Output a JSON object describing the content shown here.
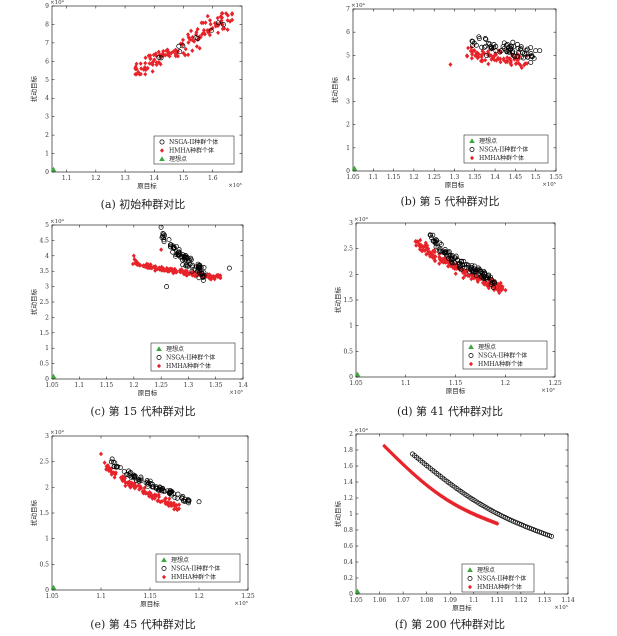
{
  "colors": {
    "nsga": "#000000",
    "hmha": "#e8232a",
    "ideal": "#3ca83c",
    "axis": "#000000"
  },
  "chart_data": [
    {
      "type": "scatter",
      "caption": "(a) 初始种群对比",
      "xlabel": "原目标",
      "ylabel": "扰动目标",
      "x_exponent": "×10⁵",
      "y_exponent": "×10⁴",
      "xlim": [
        1.05,
        1.7
      ],
      "ylim": [
        0,
        9
      ],
      "xticks": [
        "1.1",
        "1.2",
        "1.3",
        "1.4",
        "1.5",
        "1.6"
      ],
      "xtick_vals": [
        1.1,
        1.2,
        1.3,
        1.4,
        1.5,
        1.6
      ],
      "yticks": [
        "0",
        "1",
        "2",
        "3",
        "4",
        "5",
        "6",
        "7",
        "8",
        "9"
      ],
      "ytick_vals": [
        0,
        1,
        2,
        3,
        4,
        5,
        6,
        7,
        8,
        9
      ],
      "legend_position": "bottom-right",
      "legend": [
        "NSGA-II种群个体",
        "HMHA种群个体",
        "理想点"
      ],
      "legend_order": [
        "nsga",
        "hmha",
        "ideal"
      ],
      "ideal_point": [
        1.05,
        0
      ],
      "clouds": [
        {
          "series": "hmha",
          "x": [
            1.33,
            1.68
          ],
          "y": [
            5.3,
            8.6
          ],
          "n": 130,
          "spread": 0.9,
          "slope": 1.0
        },
        {
          "series": "nsga",
          "x": [
            1.4,
            1.65
          ],
          "y": [
            6.0,
            8.2
          ],
          "n": 10,
          "spread": 0.6,
          "slope": 1.0
        }
      ]
    },
    {
      "type": "scatter",
      "caption": "(b) 第 5 代种群对比",
      "xlabel": "原目标",
      "ylabel": "扰动目标",
      "x_exponent": "×10⁵",
      "y_exponent": "×10⁴",
      "xlim": [
        1.05,
        1.55
      ],
      "ylim": [
        0,
        7
      ],
      "xticks": [
        "1.05",
        "1.1",
        "1.15",
        "1.2",
        "1.25",
        "1.3",
        "1.35",
        "1.4",
        "1.45",
        "1.5",
        "1.55"
      ],
      "xtick_vals": [
        1.05,
        1.1,
        1.15,
        1.2,
        1.25,
        1.3,
        1.35,
        1.4,
        1.45,
        1.5,
        1.55
      ],
      "yticks": [
        "0",
        "1",
        "2",
        "3",
        "4",
        "5",
        "6",
        "7"
      ],
      "ytick_vals": [
        0,
        1,
        2,
        3,
        4,
        5,
        6,
        7
      ],
      "legend_position": "bottom-right",
      "legend": [
        "理想点",
        "NSGA-II种群个体",
        "HMHA种群个体"
      ],
      "legend_order": [
        "ideal",
        "nsga",
        "hmha"
      ],
      "ideal_point": [
        1.05,
        0
      ],
      "clouds": [
        {
          "series": "nsga",
          "x": [
            1.34,
            1.5
          ],
          "y": [
            4.4,
            6.2
          ],
          "n": 70,
          "spread": 1.0,
          "slope": -0.3
        },
        {
          "series": "hmha",
          "x": [
            1.33,
            1.48
          ],
          "y": [
            4.2,
            5.6
          ],
          "n": 80,
          "spread": 1.0,
          "slope": -0.3
        }
      ],
      "extra_points": [
        {
          "series": "hmha",
          "x": 1.29,
          "y": 4.6
        },
        {
          "series": "nsga",
          "x": 1.5,
          "y": 5.2
        },
        {
          "series": "nsga",
          "x": 1.51,
          "y": 5.2
        }
      ]
    },
    {
      "type": "scatter",
      "caption": "(c) 第 15 代种群对比",
      "xlabel": "原目标",
      "ylabel": "扰动目标",
      "x_exponent": "×10⁵",
      "y_exponent": "×10⁴",
      "xlim": [
        1.05,
        1.4
      ],
      "ylim": [
        0,
        5
      ],
      "xticks": [
        "1.05",
        "1.1",
        "1.15",
        "1.2",
        "1.25",
        "1.3",
        "1.35",
        "1.4"
      ],
      "xtick_vals": [
        1.05,
        1.1,
        1.15,
        1.2,
        1.25,
        1.3,
        1.35,
        1.4
      ],
      "yticks": [
        "0",
        "0.5",
        "1",
        "1.5",
        "2",
        "2.5",
        "3",
        "3.5",
        "4",
        "4.5",
        "5"
      ],
      "ytick_vals": [
        0,
        0.5,
        1,
        1.5,
        2,
        2.5,
        3,
        3.5,
        4,
        4.5,
        5
      ],
      "legend_position": "bottom-right",
      "legend": [
        "理想点",
        "NSGA-II种群个体",
        "HMHA种群个体"
      ],
      "legend_order": [
        "ideal",
        "nsga",
        "hmha"
      ],
      "ideal_point": [
        1.05,
        0
      ],
      "fronts": [
        {
          "series": "nsga",
          "x": [
            1.25,
            1.33
          ],
          "y": [
            4.8,
            3.4
          ],
          "n": 90,
          "width": 0.55
        },
        {
          "series": "hmha",
          "x": [
            1.2,
            1.36
          ],
          "y": [
            3.8,
            3.3
          ],
          "n": 140,
          "width": 0.45
        }
      ],
      "extra_points": [
        {
          "series": "nsga",
          "x": 1.375,
          "y": 3.6
        },
        {
          "series": "nsga",
          "x": 1.26,
          "y": 3.0
        },
        {
          "series": "hmha",
          "x": 1.2,
          "y": 4.0
        },
        {
          "series": "hmha",
          "x": 1.25,
          "y": 4.2
        }
      ]
    },
    {
      "type": "scatter",
      "caption": "(d) 第 41 代种群对比",
      "xlabel": "原目标",
      "ylabel": "扰动目标",
      "x_exponent": "×10⁵",
      "y_exponent": "×10⁴",
      "xlim": [
        1.05,
        1.25
      ],
      "ylim": [
        0,
        3
      ],
      "xticks": [
        "1.05",
        "1.1",
        "1.15",
        "1.2",
        "1.25"
      ],
      "xtick_vals": [
        1.05,
        1.1,
        1.15,
        1.2,
        1.25
      ],
      "yticks": [
        "0",
        "0.5",
        "1",
        "1.5",
        "2",
        "2.5",
        "3"
      ],
      "ytick_vals": [
        0,
        0.5,
        1,
        1.5,
        2,
        2.5,
        3
      ],
      "legend_position": "bottom-right",
      "legend": [
        "理想点",
        "NSGA-II种群个体",
        "HMHA种群个体"
      ],
      "legend_order": [
        "ideal",
        "nsga",
        "hmha"
      ],
      "ideal_point": [
        1.05,
        0
      ],
      "fronts": [
        {
          "series": "nsga",
          "x": [
            1.125,
            1.19
          ],
          "y": [
            2.75,
            1.85
          ],
          "n": 110,
          "width": 0.35
        },
        {
          "series": "hmha",
          "x": [
            1.11,
            1.2
          ],
          "y": [
            2.7,
            1.7
          ],
          "n": 170,
          "width": 0.35
        }
      ]
    },
    {
      "type": "scatter",
      "caption": "(e) 第 45 代种群对比",
      "xlabel": "原目标",
      "ylabel": "扰动目标",
      "x_exponent": "×10⁵",
      "y_exponent": "×10⁴",
      "xlim": [
        1.05,
        1.25
      ],
      "ylim": [
        0,
        3
      ],
      "xticks": [
        "1.05",
        "1.1",
        "1.15",
        "1.2",
        "1.25"
      ],
      "xtick_vals": [
        1.05,
        1.1,
        1.15,
        1.2,
        1.25
      ],
      "yticks": [
        "0",
        "0.5",
        "1",
        "1.5",
        "2",
        "2.5",
        "3"
      ],
      "ytick_vals": [
        0,
        0.5,
        1,
        1.5,
        2,
        2.5,
        3
      ],
      "legend_position": "bottom-right",
      "legend": [
        "理想点",
        "NSGA-II种群个体",
        "HMHA种群个体"
      ],
      "legend_order": [
        "ideal",
        "nsga",
        "hmha"
      ],
      "ideal_point": [
        1.05,
        0
      ],
      "fronts": [
        {
          "series": "nsga",
          "x": [
            1.11,
            1.19
          ],
          "y": [
            2.55,
            1.75
          ],
          "n": 90,
          "width": 0.22
        },
        {
          "series": "hmha",
          "x": [
            1.1,
            1.18
          ],
          "y": [
            2.55,
            1.6
          ],
          "n": 110,
          "width": 0.25
        }
      ],
      "extra_points": [
        {
          "series": "nsga",
          "x": 1.2,
          "y": 1.72
        },
        {
          "series": "hmha",
          "x": 1.1,
          "y": 2.65
        }
      ]
    },
    {
      "type": "scatter",
      "caption": "(f) 第 200 代种群对比",
      "xlabel": "原目标",
      "ylabel": "扰动目标",
      "x_exponent": "×10⁵",
      "y_exponent": "×10⁴",
      "xlim": [
        1.05,
        1.14
      ],
      "ylim": [
        0,
        2
      ],
      "xticks": [
        "1.05",
        "1.06",
        "1.07",
        "1.08",
        "1.09",
        "1.1",
        "1.11",
        "1.12",
        "1.13",
        "1.14"
      ],
      "xtick_vals": [
        1.05,
        1.06,
        1.07,
        1.08,
        1.09,
        1.1,
        1.11,
        1.12,
        1.13,
        1.14
      ],
      "yticks": [
        "0",
        "0.2",
        "0.4",
        "0.6",
        "0.8",
        "1",
        "1.2",
        "1.4",
        "1.6",
        "1.8",
        "2"
      ],
      "ytick_vals": [
        0,
        0.2,
        0.4,
        0.6,
        0.8,
        1,
        1.2,
        1.4,
        1.6,
        1.8,
        2
      ],
      "legend_position": "bottom-left",
      "legend": [
        "理想点",
        "NSGA-II种群个体",
        "HMHA种群个体"
      ],
      "legend_order": [
        "ideal",
        "nsga",
        "hmha"
      ],
      "ideal_point": [
        1.05,
        0
      ],
      "curves": [
        {
          "series": "nsga",
          "x": [
            1.074,
            1.133
          ],
          "y": [
            1.75,
            0.72
          ],
          "n": 70,
          "bend": 0.12
        },
        {
          "series": "hmha",
          "x": [
            1.062,
            1.11
          ],
          "y": [
            1.85,
            0.88
          ],
          "n": 95,
          "bend": 0.14
        }
      ]
    }
  ]
}
